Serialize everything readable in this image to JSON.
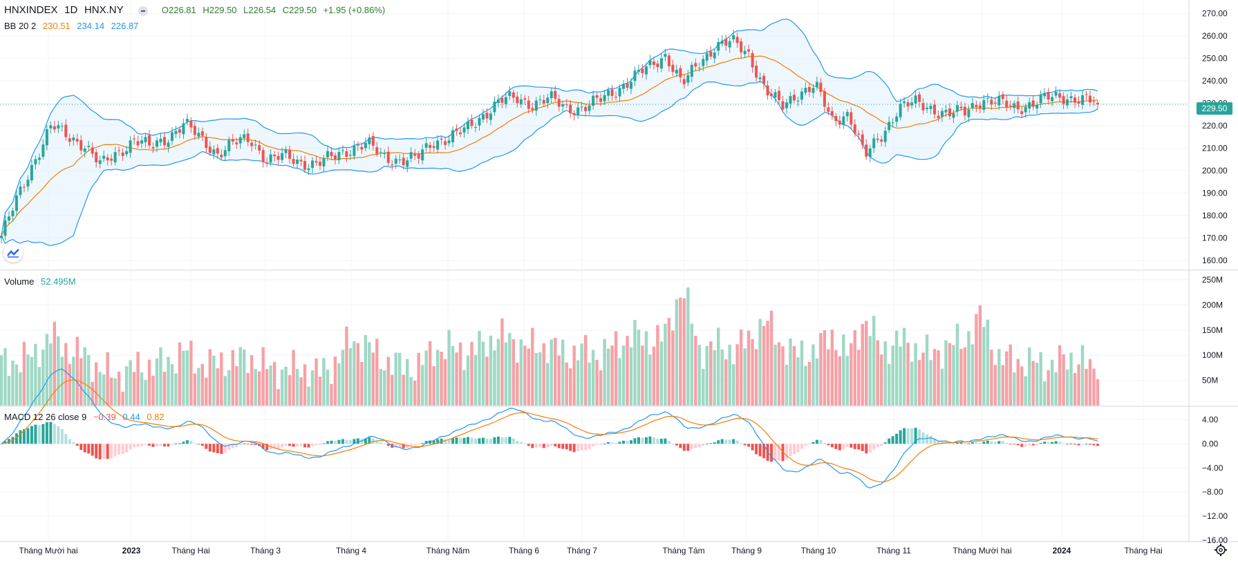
{
  "header": {
    "symbol": "HNXINDEX",
    "interval": "1D",
    "exchange": "HNX.NY",
    "ohlc": {
      "o": "O226.81",
      "h": "H229.50",
      "l": "L226.54",
      "c": "C229.50",
      "change": "+1.95 (+0.86%)"
    }
  },
  "bb": {
    "label": "BB 20 2",
    "basis": "230.51",
    "upper": "234.14",
    "lower": "226.87"
  },
  "volume": {
    "label": "Volume",
    "value": "52.495M"
  },
  "macd": {
    "label": "MACD 12 26 close 9",
    "hist": "−0.39",
    "macd": "0.44",
    "signal": "0.82"
  },
  "last_price": "229.50",
  "colors": {
    "up": "#26a69a",
    "down": "#ef5350",
    "vol_up": "#9fd8c4",
    "vol_down": "#f5a1a6",
    "bb_line": "#2196f3",
    "bb_fill": "#e3f2fd",
    "basis": "#f57c00",
    "macd_line": "#2196f3",
    "signal_line": "#f57c00"
  },
  "chart_data": {
    "type": "candlestick",
    "price_axis": {
      "ticks": [
        270,
        260,
        250,
        240,
        230,
        220,
        210,
        200,
        190,
        180,
        170,
        160
      ],
      "labels": [
        "270.00",
        "260.00",
        "250.00",
        "240.00",
        "230.00",
        "220.00",
        "210.00",
        "200.00",
        "190.00",
        "180.00",
        "170.00",
        "160.00"
      ],
      "ylim": [
        156,
        276
      ]
    },
    "volume_axis": {
      "ticks": [
        250,
        200,
        150,
        100,
        50
      ],
      "labels": [
        "250M",
        "200M",
        "150M",
        "100M",
        "50M"
      ],
      "ylim": [
        0,
        250
      ]
    },
    "macd_axis": {
      "ticks": [
        4,
        0,
        -4,
        -8,
        -12,
        -16
      ],
      "labels": [
        "4.00",
        "0.00",
        "−4.00",
        "−8.00",
        "−12.00",
        "−16.00"
      ],
      "ylim": [
        -16,
        6
      ]
    },
    "time_axis": {
      "labels": [
        "Tháng Mười hai",
        "2023",
        "Tháng Hai",
        "Tháng 3",
        "Tháng 4",
        "Tháng Năm",
        "Tháng 6",
        "Tháng 7",
        "Tháng Tám",
        "Tháng 9",
        "Tháng 10",
        "Tháng 11",
        "Tháng Mười hai",
        "2024",
        "Tháng Hai"
      ],
      "bold": [
        false,
        true,
        false,
        false,
        false,
        false,
        false,
        false,
        false,
        false,
        false,
        false,
        false,
        true,
        false
      ]
    },
    "close_series": [
      {
        "x": "2022-11-17",
        "close": 171,
        "volume": 85
      },
      {
        "x": "2022-11-24",
        "close": 188,
        "volume": 90
      },
      {
        "x": "2022-12-01",
        "close": 205,
        "volume": 100
      },
      {
        "x": "2022-12-08",
        "close": 220,
        "volume": 140
      },
      {
        "x": "2022-12-15",
        "close": 215,
        "volume": 110
      },
      {
        "x": "2022-12-22",
        "close": 212,
        "volume": 100
      },
      {
        "x": "2022-12-29",
        "close": 202,
        "volume": 70
      },
      {
        "x": "2023-01-05",
        "close": 208,
        "volume": 60
      },
      {
        "x": "2023-01-12",
        "close": 214,
        "volume": 75
      },
      {
        "x": "2023-01-19",
        "close": 210,
        "volume": 80
      },
      {
        "x": "2023-01-26",
        "close": 215,
        "volume": 85
      },
      {
        "x": "2023-02-02",
        "close": 221,
        "volume": 110
      },
      {
        "x": "2023-02-09",
        "close": 214,
        "volume": 80
      },
      {
        "x": "2023-02-16",
        "close": 208,
        "volume": 85
      },
      {
        "x": "2023-02-23",
        "close": 212,
        "volume": 90
      },
      {
        "x": "2023-03-02",
        "close": 214,
        "volume": 95
      },
      {
        "x": "2023-03-09",
        "close": 205,
        "volume": 75
      },
      {
        "x": "2023-03-16",
        "close": 206,
        "volume": 70
      },
      {
        "x": "2023-03-23",
        "close": 204,
        "volume": 75
      },
      {
        "x": "2023-03-30",
        "close": 203,
        "volume": 65
      },
      {
        "x": "2023-04-06",
        "close": 206,
        "volume": 80
      },
      {
        "x": "2023-04-13",
        "close": 210,
        "volume": 130
      },
      {
        "x": "2023-04-20",
        "close": 212,
        "volume": 120
      },
      {
        "x": "2023-04-27",
        "close": 206,
        "volume": 90
      },
      {
        "x": "2023-05-04",
        "close": 205,
        "volume": 80
      },
      {
        "x": "2023-05-11",
        "close": 205,
        "volume": 75
      },
      {
        "x": "2023-05-18",
        "close": 213,
        "volume": 110
      },
      {
        "x": "2023-05-25",
        "close": 215,
        "volume": 115
      },
      {
        "x": "2023-06-01",
        "close": 218,
        "volume": 105
      },
      {
        "x": "2023-06-08",
        "close": 225,
        "volume": 120
      },
      {
        "x": "2023-06-15",
        "close": 231,
        "volume": 140
      },
      {
        "x": "2023-06-22",
        "close": 232,
        "volume": 125
      },
      {
        "x": "2023-06-29",
        "close": 230,
        "volume": 115
      },
      {
        "x": "2023-07-06",
        "close": 232,
        "volume": 120
      },
      {
        "x": "2023-07-13",
        "close": 228,
        "volume": 100
      },
      {
        "x": "2023-07-20",
        "close": 228,
        "volume": 110
      },
      {
        "x": "2023-07-27",
        "close": 231,
        "volume": 100
      },
      {
        "x": "2023-08-03",
        "close": 236,
        "volume": 120
      },
      {
        "x": "2023-08-10",
        "close": 241,
        "volume": 140
      },
      {
        "x": "2023-08-17",
        "close": 246,
        "volume": 130
      },
      {
        "x": "2023-08-24",
        "close": 252,
        "volume": 140
      },
      {
        "x": "2023-08-31",
        "close": 238,
        "volume": 240
      },
      {
        "x": "2023-09-07",
        "close": 248,
        "volume": 110
      },
      {
        "x": "2023-09-14",
        "close": 256,
        "volume": 120
      },
      {
        "x": "2023-09-21",
        "close": 257,
        "volume": 110
      },
      {
        "x": "2023-09-28",
        "close": 252,
        "volume": 130
      },
      {
        "x": "2023-10-05",
        "close": 236,
        "volume": 170
      },
      {
        "x": "2023-10-12",
        "close": 228,
        "volume": 120
      },
      {
        "x": "2023-10-19",
        "close": 235,
        "volume": 100
      },
      {
        "x": "2023-10-26",
        "close": 238,
        "volume": 110
      },
      {
        "x": "2023-11-02",
        "close": 222,
        "volume": 140
      },
      {
        "x": "2023-11-09",
        "close": 226,
        "volume": 100
      },
      {
        "x": "2023-11-16",
        "close": 206,
        "volume": 175
      },
      {
        "x": "2023-11-23",
        "close": 216,
        "volume": 110
      },
      {
        "x": "2023-11-30",
        "close": 228,
        "volume": 130
      },
      {
        "x": "2023-12-07",
        "close": 230,
        "volume": 115
      },
      {
        "x": "2023-12-14",
        "close": 228,
        "volume": 100
      },
      {
        "x": "2023-12-21",
        "close": 225,
        "volume": 120
      },
      {
        "x": "2023-12-28",
        "close": 226,
        "volume": 130
      },
      {
        "x": "2024-01-04",
        "close": 232,
        "volume": 180
      },
      {
        "x": "2024-01-11",
        "close": 230,
        "volume": 95
      },
      {
        "x": "2024-01-18",
        "close": 228,
        "volume": 90
      },
      {
        "x": "2024-01-25",
        "close": 230,
        "volume": 85
      },
      {
        "x": "2024-02-01",
        "close": 232,
        "volume": 80
      },
      {
        "x": "2024-02-08",
        "close": 233,
        "volume": 90
      },
      {
        "x": "2024-02-15",
        "close": 232,
        "volume": 95
      },
      {
        "x": "2024-02-22",
        "close": 229.5,
        "volume": 52.495
      }
    ]
  }
}
